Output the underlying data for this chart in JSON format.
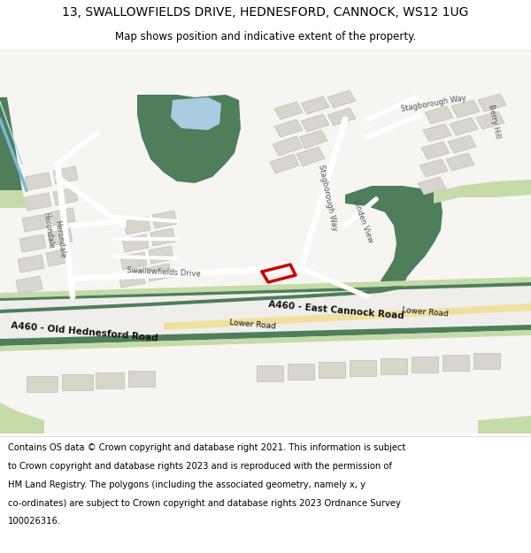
{
  "title": "13, SWALLOWFIELDS DRIVE, HEDNESFORD, CANNOCK, WS12 1UG",
  "subtitle": "Map shows position and indicative extent of the property.",
  "footer_lines": [
    "Contains OS data © Crown copyright and database right 2021. This information is subject",
    "to Crown copyright and database rights 2023 and is reproduced with the permission of",
    "HM Land Registry. The polygons (including the associated geometry, namely x, y",
    "co-ordinates) are subject to Crown copyright and database rights 2023 Ordnance Survey",
    "100026316."
  ],
  "bg_color": "#ffffff",
  "map_bg": "#f7f5f2",
  "road_green_dark": "#4e7e5a",
  "road_green_light": "#c5dba8",
  "road_yellow": "#f0e0a0",
  "building_color": "#d8d5cf",
  "building_edge": "#c0bdb7",
  "water_blue": "#aacce0",
  "highlight_red": "#cc0000",
  "street_color": "#e8e5e0",
  "street_edge": "#cccccc",
  "title_fontsize": 10,
  "subtitle_fontsize": 8.5,
  "footer_fontsize": 7.2,
  "label_color": "#555555",
  "road_label_color": "#111111"
}
